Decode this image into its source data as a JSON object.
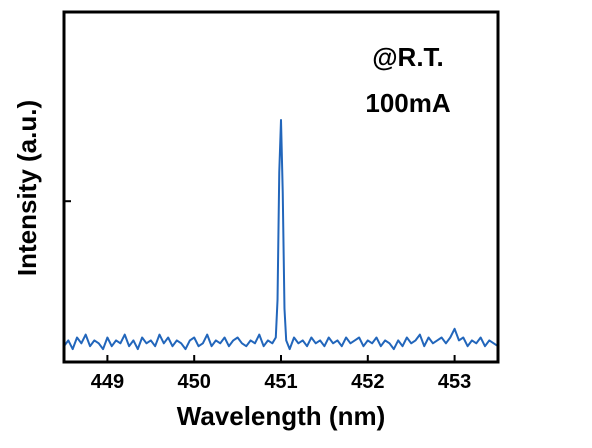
{
  "chart_data": {
    "type": "line",
    "title": "",
    "xlabel": "Wavelength (nm)",
    "ylabel": "Intensity (a.u.)",
    "xlim": [
      448.5,
      453.5
    ],
    "ylim": [
      0,
      1
    ],
    "x_ticks": [
      449,
      450,
      451,
      452,
      453
    ],
    "x_tick_labels": [
      "449",
      "450",
      "451",
      "452",
      "453"
    ],
    "y_ticks": [
      0.52
    ],
    "y_tick_labels": [],
    "annotations": [
      "@R.T.",
      "100mA"
    ],
    "grid": false,
    "legend": "none",
    "series": [
      {
        "color": "#2266bb",
        "x": [
          448.5,
          448.55,
          448.6,
          448.65,
          448.7,
          448.75,
          448.8,
          448.85,
          448.9,
          448.95,
          449.0,
          449.05,
          449.1,
          449.15,
          449.2,
          449.25,
          449.3,
          449.35,
          449.4,
          449.45,
          449.5,
          449.55,
          449.6,
          449.65,
          449.7,
          449.75,
          449.8,
          449.85,
          449.9,
          449.95,
          450.0,
          450.05,
          450.1,
          450.15,
          450.2,
          450.25,
          450.3,
          450.35,
          450.4,
          450.45,
          450.5,
          450.55,
          450.6,
          450.65,
          450.7,
          450.75,
          450.8,
          450.85,
          450.9,
          450.94,
          450.96,
          450.98,
          451.0,
          451.02,
          451.04,
          451.06,
          451.1,
          451.15,
          451.2,
          451.25,
          451.3,
          451.35,
          451.4,
          451.45,
          451.5,
          451.55,
          451.6,
          451.65,
          451.7,
          451.75,
          451.8,
          451.85,
          451.9,
          451.95,
          452.0,
          452.05,
          452.1,
          452.15,
          452.2,
          452.25,
          452.3,
          452.35,
          452.4,
          452.45,
          452.5,
          452.55,
          452.6,
          452.65,
          452.7,
          452.75,
          452.8,
          452.85,
          452.9,
          452.95,
          453.0,
          453.05,
          453.1,
          453.15,
          453.2,
          453.25,
          453.3,
          453.35,
          453.4,
          453.45,
          453.5
        ],
        "y": [
          0.02,
          0.04,
          0.01,
          0.05,
          0.03,
          0.06,
          0.02,
          0.04,
          0.03,
          0.01,
          0.05,
          0.02,
          0.04,
          0.03,
          0.06,
          0.02,
          0.04,
          0.01,
          0.05,
          0.03,
          0.04,
          0.02,
          0.06,
          0.03,
          0.05,
          0.02,
          0.04,
          0.03,
          0.01,
          0.04,
          0.05,
          0.02,
          0.03,
          0.06,
          0.02,
          0.04,
          0.03,
          0.05,
          0.02,
          0.04,
          0.05,
          0.03,
          0.02,
          0.04,
          0.03,
          0.06,
          0.02,
          0.04,
          0.03,
          0.05,
          0.18,
          0.62,
          0.8,
          0.55,
          0.15,
          0.04,
          0.01,
          0.05,
          0.03,
          0.04,
          0.02,
          0.05,
          0.03,
          0.04,
          0.02,
          0.05,
          0.03,
          0.04,
          0.02,
          0.05,
          0.03,
          0.04,
          0.05,
          0.02,
          0.04,
          0.03,
          0.05,
          0.02,
          0.04,
          0.03,
          0.01,
          0.04,
          0.02,
          0.05,
          0.03,
          0.04,
          0.06,
          0.02,
          0.05,
          0.03,
          0.04,
          0.05,
          0.03,
          0.05,
          0.08,
          0.04,
          0.05,
          0.02,
          0.04,
          0.03,
          0.05,
          0.02,
          0.04,
          0.03,
          0.02
        ]
      }
    ]
  }
}
